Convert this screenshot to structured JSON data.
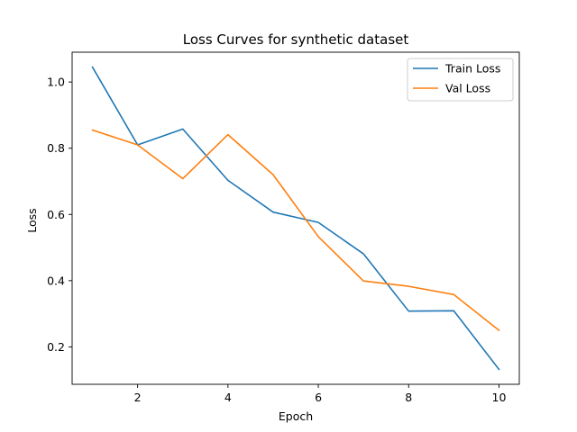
{
  "chart_data": {
    "type": "line",
    "title": "Loss Curves for synthetic dataset",
    "xlabel": "Epoch",
    "ylabel": "Loss",
    "x": [
      1,
      2,
      3,
      4,
      5,
      6,
      7,
      8,
      9,
      10
    ],
    "xlim": [
      0.55,
      10.45
    ],
    "ylim": [
      0.087,
      1.09
    ],
    "xticks": [
      2,
      4,
      6,
      8,
      10
    ],
    "yticks": [
      0.2,
      0.4,
      0.6,
      0.8,
      1.0
    ],
    "xtick_labels": [
      "2",
      "4",
      "6",
      "8",
      "10"
    ],
    "ytick_labels": [
      "0.2",
      "0.4",
      "0.6",
      "0.8",
      "1.0"
    ],
    "grid": false,
    "legend": "top-right",
    "series": [
      {
        "name": "Train Loss",
        "color": "#1f77b4",
        "values": [
          1.045,
          0.81,
          0.858,
          0.703,
          0.607,
          0.576,
          0.481,
          0.308,
          0.309,
          0.132
        ]
      },
      {
        "name": "Val Loss",
        "color": "#ff7f0e",
        "values": [
          0.855,
          0.81,
          0.708,
          0.841,
          0.72,
          0.533,
          0.399,
          0.383,
          0.358,
          0.25
        ]
      }
    ]
  }
}
